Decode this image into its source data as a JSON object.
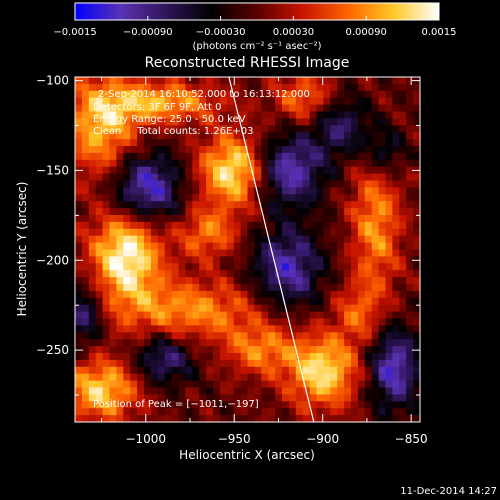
{
  "chart_data": {
    "type": "heatmap",
    "title": "Reconstructed RHESSI Image",
    "xlabel": "Heliocentric X (arcsec)",
    "ylabel": "Heliocentric Y (arcsec)",
    "xlim": [
      -1040,
      -845
    ],
    "ylim": [
      -290,
      -98
    ],
    "x_ticks": [
      -1000,
      -950,
      -900,
      -850
    ],
    "y_ticks": [
      -100,
      -150,
      -200,
      -250
    ],
    "x_tick_labels": [
      "−1000",
      "−950",
      "−900",
      "−850"
    ],
    "y_tick_labels": [
      "−100",
      "−150",
      "−200",
      "−250"
    ],
    "colorbar": {
      "min": -0.0015,
      "max": 0.0015,
      "ticks": [
        -0.0015,
        -0.0009,
        -0.0003,
        0.0003,
        0.0009,
        0.0015
      ],
      "tick_labels": [
        "−0.0015",
        "−0.00090",
        "−0.00030",
        "0.00030",
        "0.00090",
        "0.0015"
      ],
      "unit_label": "(photons cm⁻² s⁻¹ asec⁻²)",
      "stops": [
        "#0000ff",
        "#5a32b4",
        "#30155a",
        "#000000",
        "#5a0000",
        "#c81400",
        "#ff6400",
        "#ffc828",
        "#ffffff"
      ]
    },
    "annotations": [
      "2-Sep-2014 16:10:52.000 to 16:13:12.000",
      "Detectors: 3F 6F 9F, Att 0",
      "Energy Range: 25.0 - 50.0 keV",
      "Clean     Total counts: 1.26E+03"
    ],
    "peak_label": "Position of Peak = [−1011,−197]",
    "peak": [
      -1011,
      -197
    ],
    "limb_line": [
      [
        -953,
        -98
      ],
      [
        -905,
        -290
      ]
    ],
    "sources": [
      {
        "x": -1011,
        "y": -197,
        "amp": 0.0015,
        "sx": 14,
        "sy": 18
      },
      {
        "x": -950,
        "y": -150,
        "amp": 0.0014,
        "sx": 14,
        "sy": 14
      },
      {
        "x": -1025,
        "y": -125,
        "amp": 0.0011,
        "sx": 15,
        "sy": 20
      },
      {
        "x": -975,
        "y": -228,
        "amp": 0.0009,
        "sx": 30,
        "sy": 12
      },
      {
        "x": -990,
        "y": -112,
        "amp": 0.001,
        "sx": 22,
        "sy": 8
      },
      {
        "x": -1025,
        "y": -272,
        "amp": 0.0012,
        "sx": 15,
        "sy": 12
      },
      {
        "x": -935,
        "y": -250,
        "amp": 0.0008,
        "sx": 14,
        "sy": 10
      },
      {
        "x": -900,
        "y": -262,
        "amp": 0.0013,
        "sx": 14,
        "sy": 14
      },
      {
        "x": -910,
        "y": -110,
        "amp": 0.0008,
        "sx": 12,
        "sy": 10
      },
      {
        "x": -870,
        "y": -180,
        "amp": 0.0009,
        "sx": 10,
        "sy": 28
      },
      {
        "x": -880,
        "y": -230,
        "amp": 0.0006,
        "sx": 10,
        "sy": 12
      },
      {
        "x": -965,
        "y": -185,
        "amp": 0.0008,
        "sx": 12,
        "sy": 10
      },
      {
        "x": -1000,
        "y": -160,
        "amp": -0.0013,
        "sx": 14,
        "sy": 14
      },
      {
        "x": -920,
        "y": -150,
        "amp": -0.0012,
        "sx": 14,
        "sy": 14
      },
      {
        "x": -920,
        "y": -205,
        "amp": -0.0011,
        "sx": 14,
        "sy": 16
      },
      {
        "x": -860,
        "y": -260,
        "amp": -0.0012,
        "sx": 10,
        "sy": 16
      },
      {
        "x": -990,
        "y": -255,
        "amp": -0.0009,
        "sx": 12,
        "sy": 10
      },
      {
        "x": -1035,
        "y": -230,
        "amp": -0.0009,
        "sx": 8,
        "sy": 12
      },
      {
        "x": -890,
        "y": -125,
        "amp": -0.0008,
        "sx": 12,
        "sy": 12
      },
      {
        "x": -865,
        "y": -140,
        "amp": -0.0007,
        "sx": 8,
        "sy": 10
      }
    ]
  },
  "footer": {
    "timestamp": "11-Dec-2014 14:27"
  }
}
